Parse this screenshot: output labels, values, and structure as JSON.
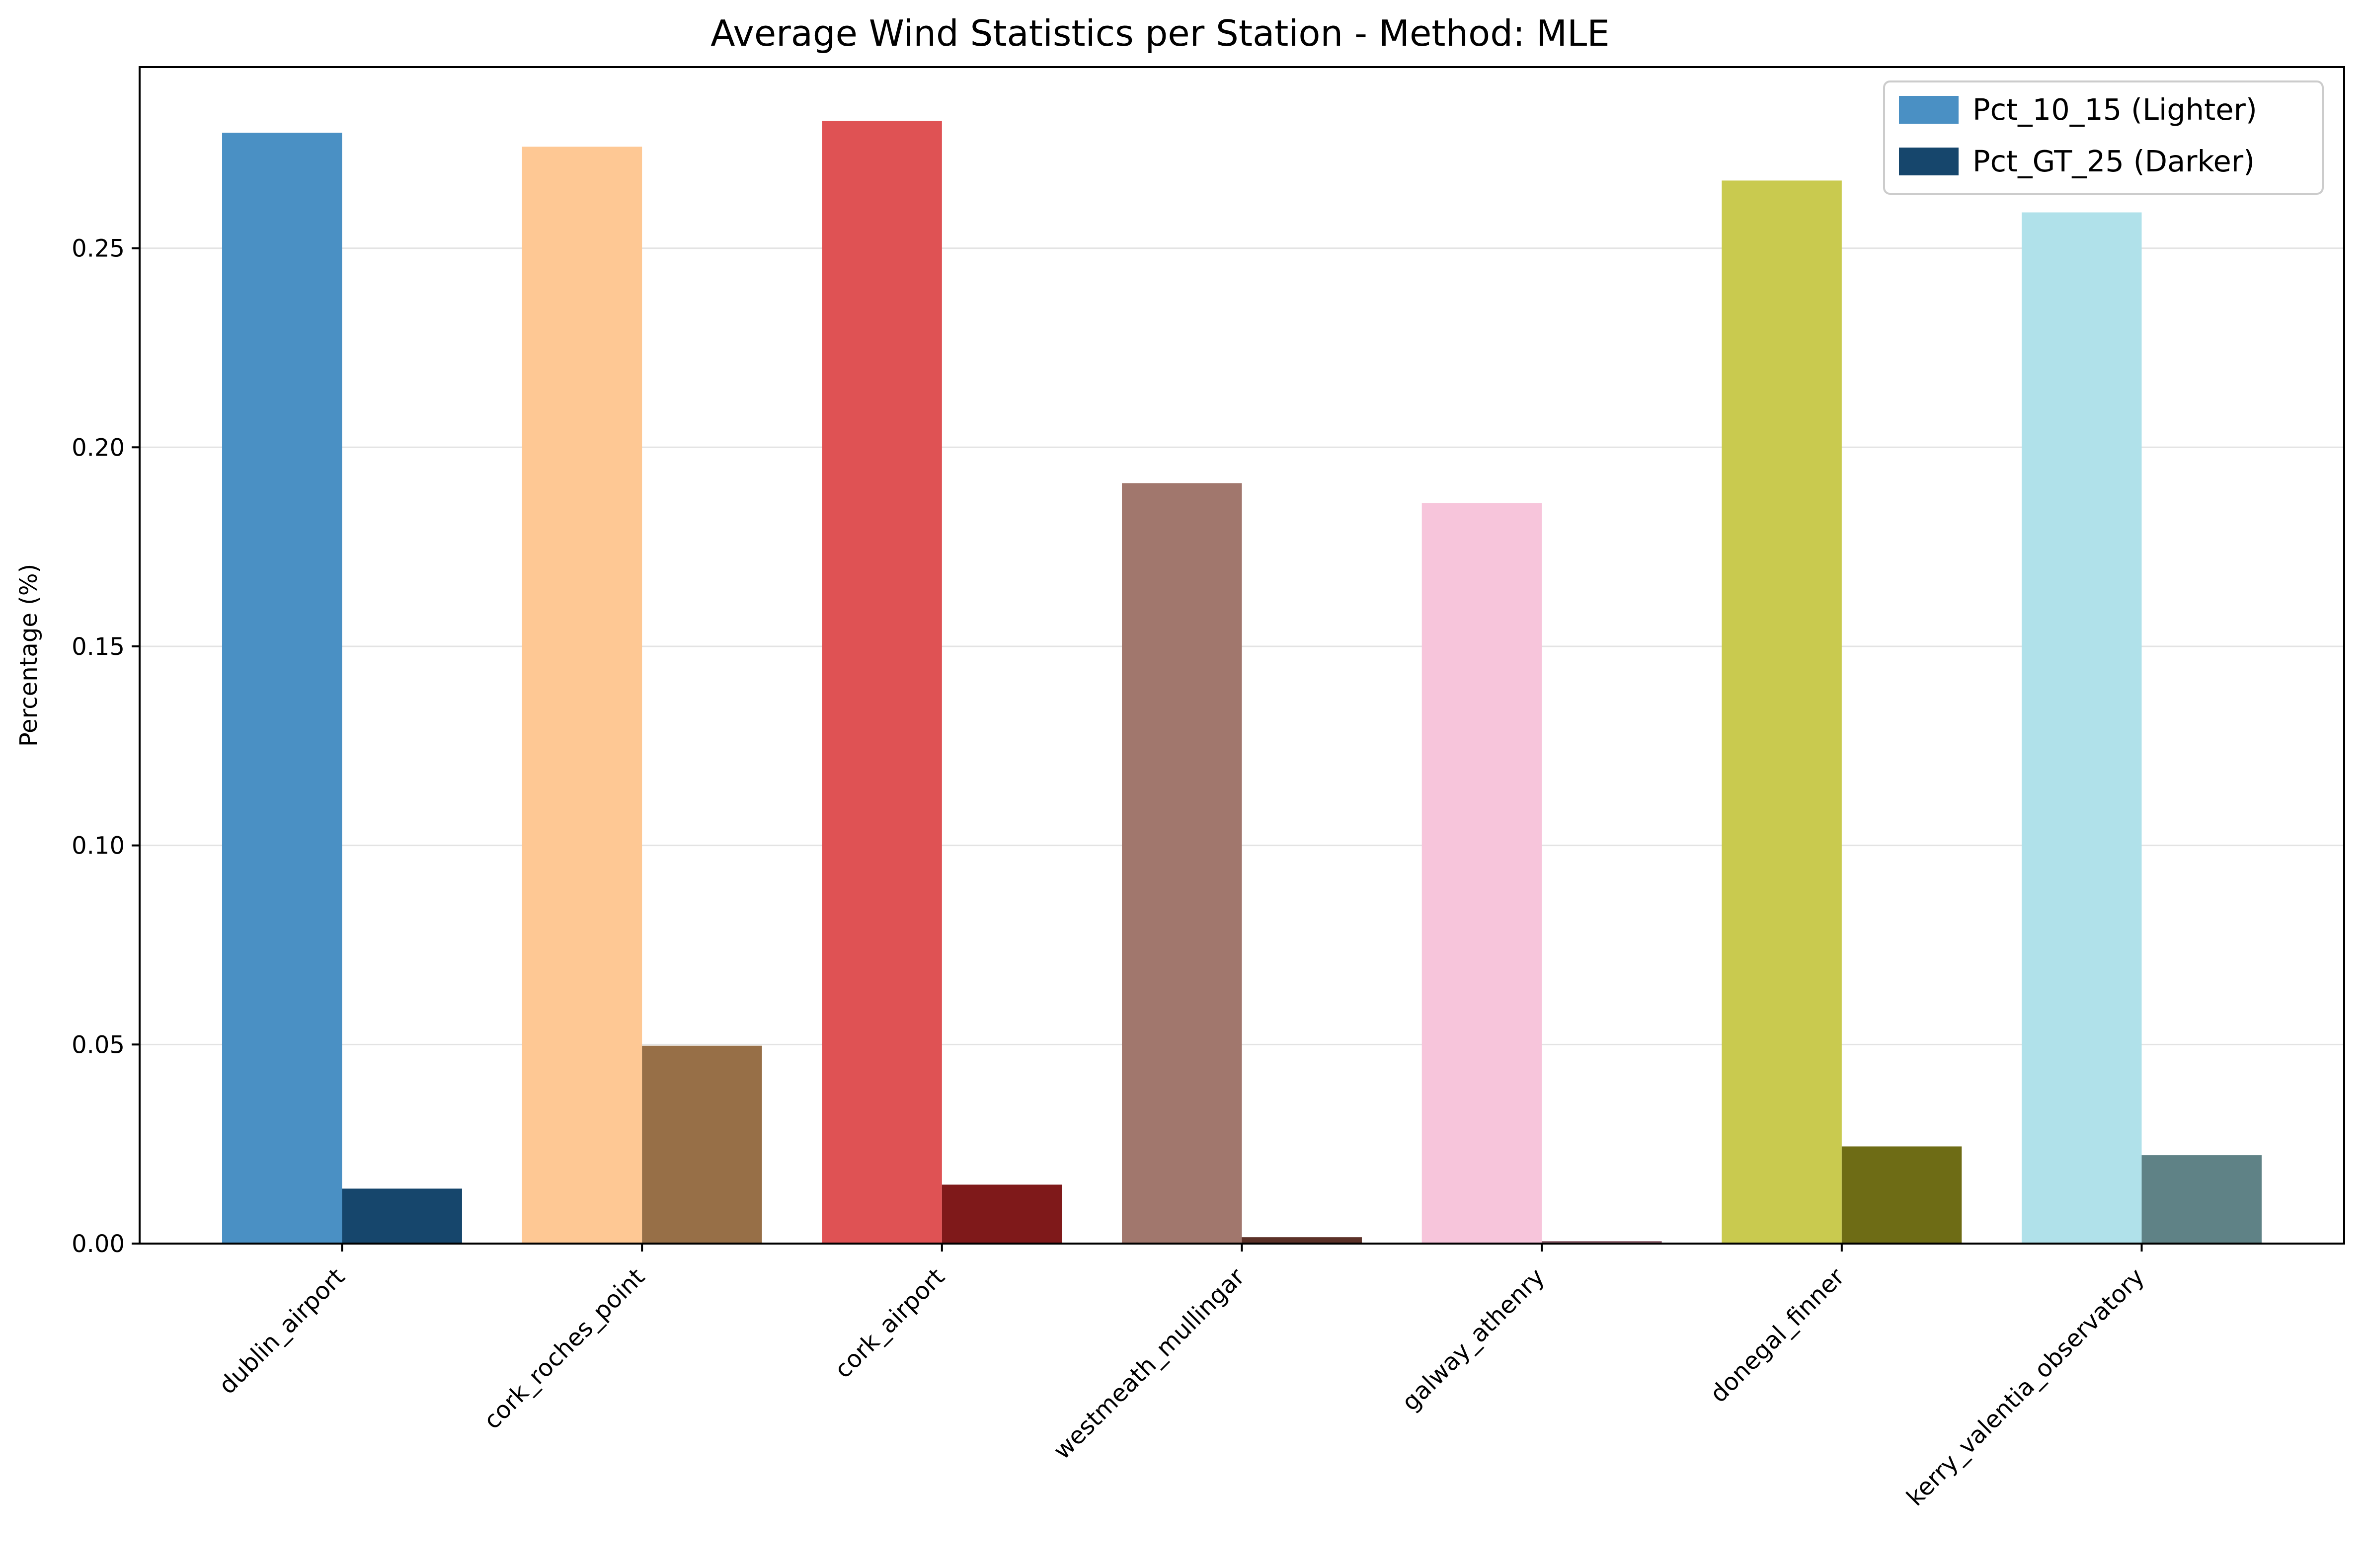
{
  "chart_data": {
    "type": "bar",
    "title": "Average Wind Statistics per Station - Method: MLE",
    "xlabel": "",
    "ylabel": "Percentage (%)",
    "ylim": [
      0,
      0.2955
    ],
    "yticks": [
      "0.00",
      "0.05",
      "0.10",
      "0.15",
      "0.20",
      "0.25"
    ],
    "ytick_values": [
      0,
      0.05,
      0.1,
      0.15,
      0.2,
      0.25
    ],
    "grid": "horizontal",
    "legend_position": "top-right",
    "categories": [
      "dublin_airport",
      "cork_roches_point",
      "cork_airport",
      "westmeath_mullingar",
      "galway_athenry",
      "donegal_finner",
      "kerry_valentia_observatory"
    ],
    "series": [
      {
        "name": "Pct_10_15 (Lighter)",
        "legend_color": "#4a90c4",
        "values": [
          0.279,
          0.2755,
          0.282,
          0.191,
          0.186,
          0.267,
          0.259
        ],
        "colors": [
          "#4a90c4",
          "#fec894",
          "#df5254",
          "#a1776d",
          "#f7c5db",
          "#c9ca4f",
          "#b0e1ea"
        ]
      },
      {
        "name": "Pct_GT_25 (Darker)",
        "legend_color": "#16466c",
        "values": [
          0.0138,
          0.0497,
          0.0148,
          0.0016,
          0.0006,
          0.0244,
          0.0222
        ],
        "colors": [
          "#16466c",
          "#976f47",
          "#7f191a",
          "#5b3128",
          "#8a5d6a",
          "#6e6c15",
          "#5f8286"
        ]
      }
    ]
  }
}
